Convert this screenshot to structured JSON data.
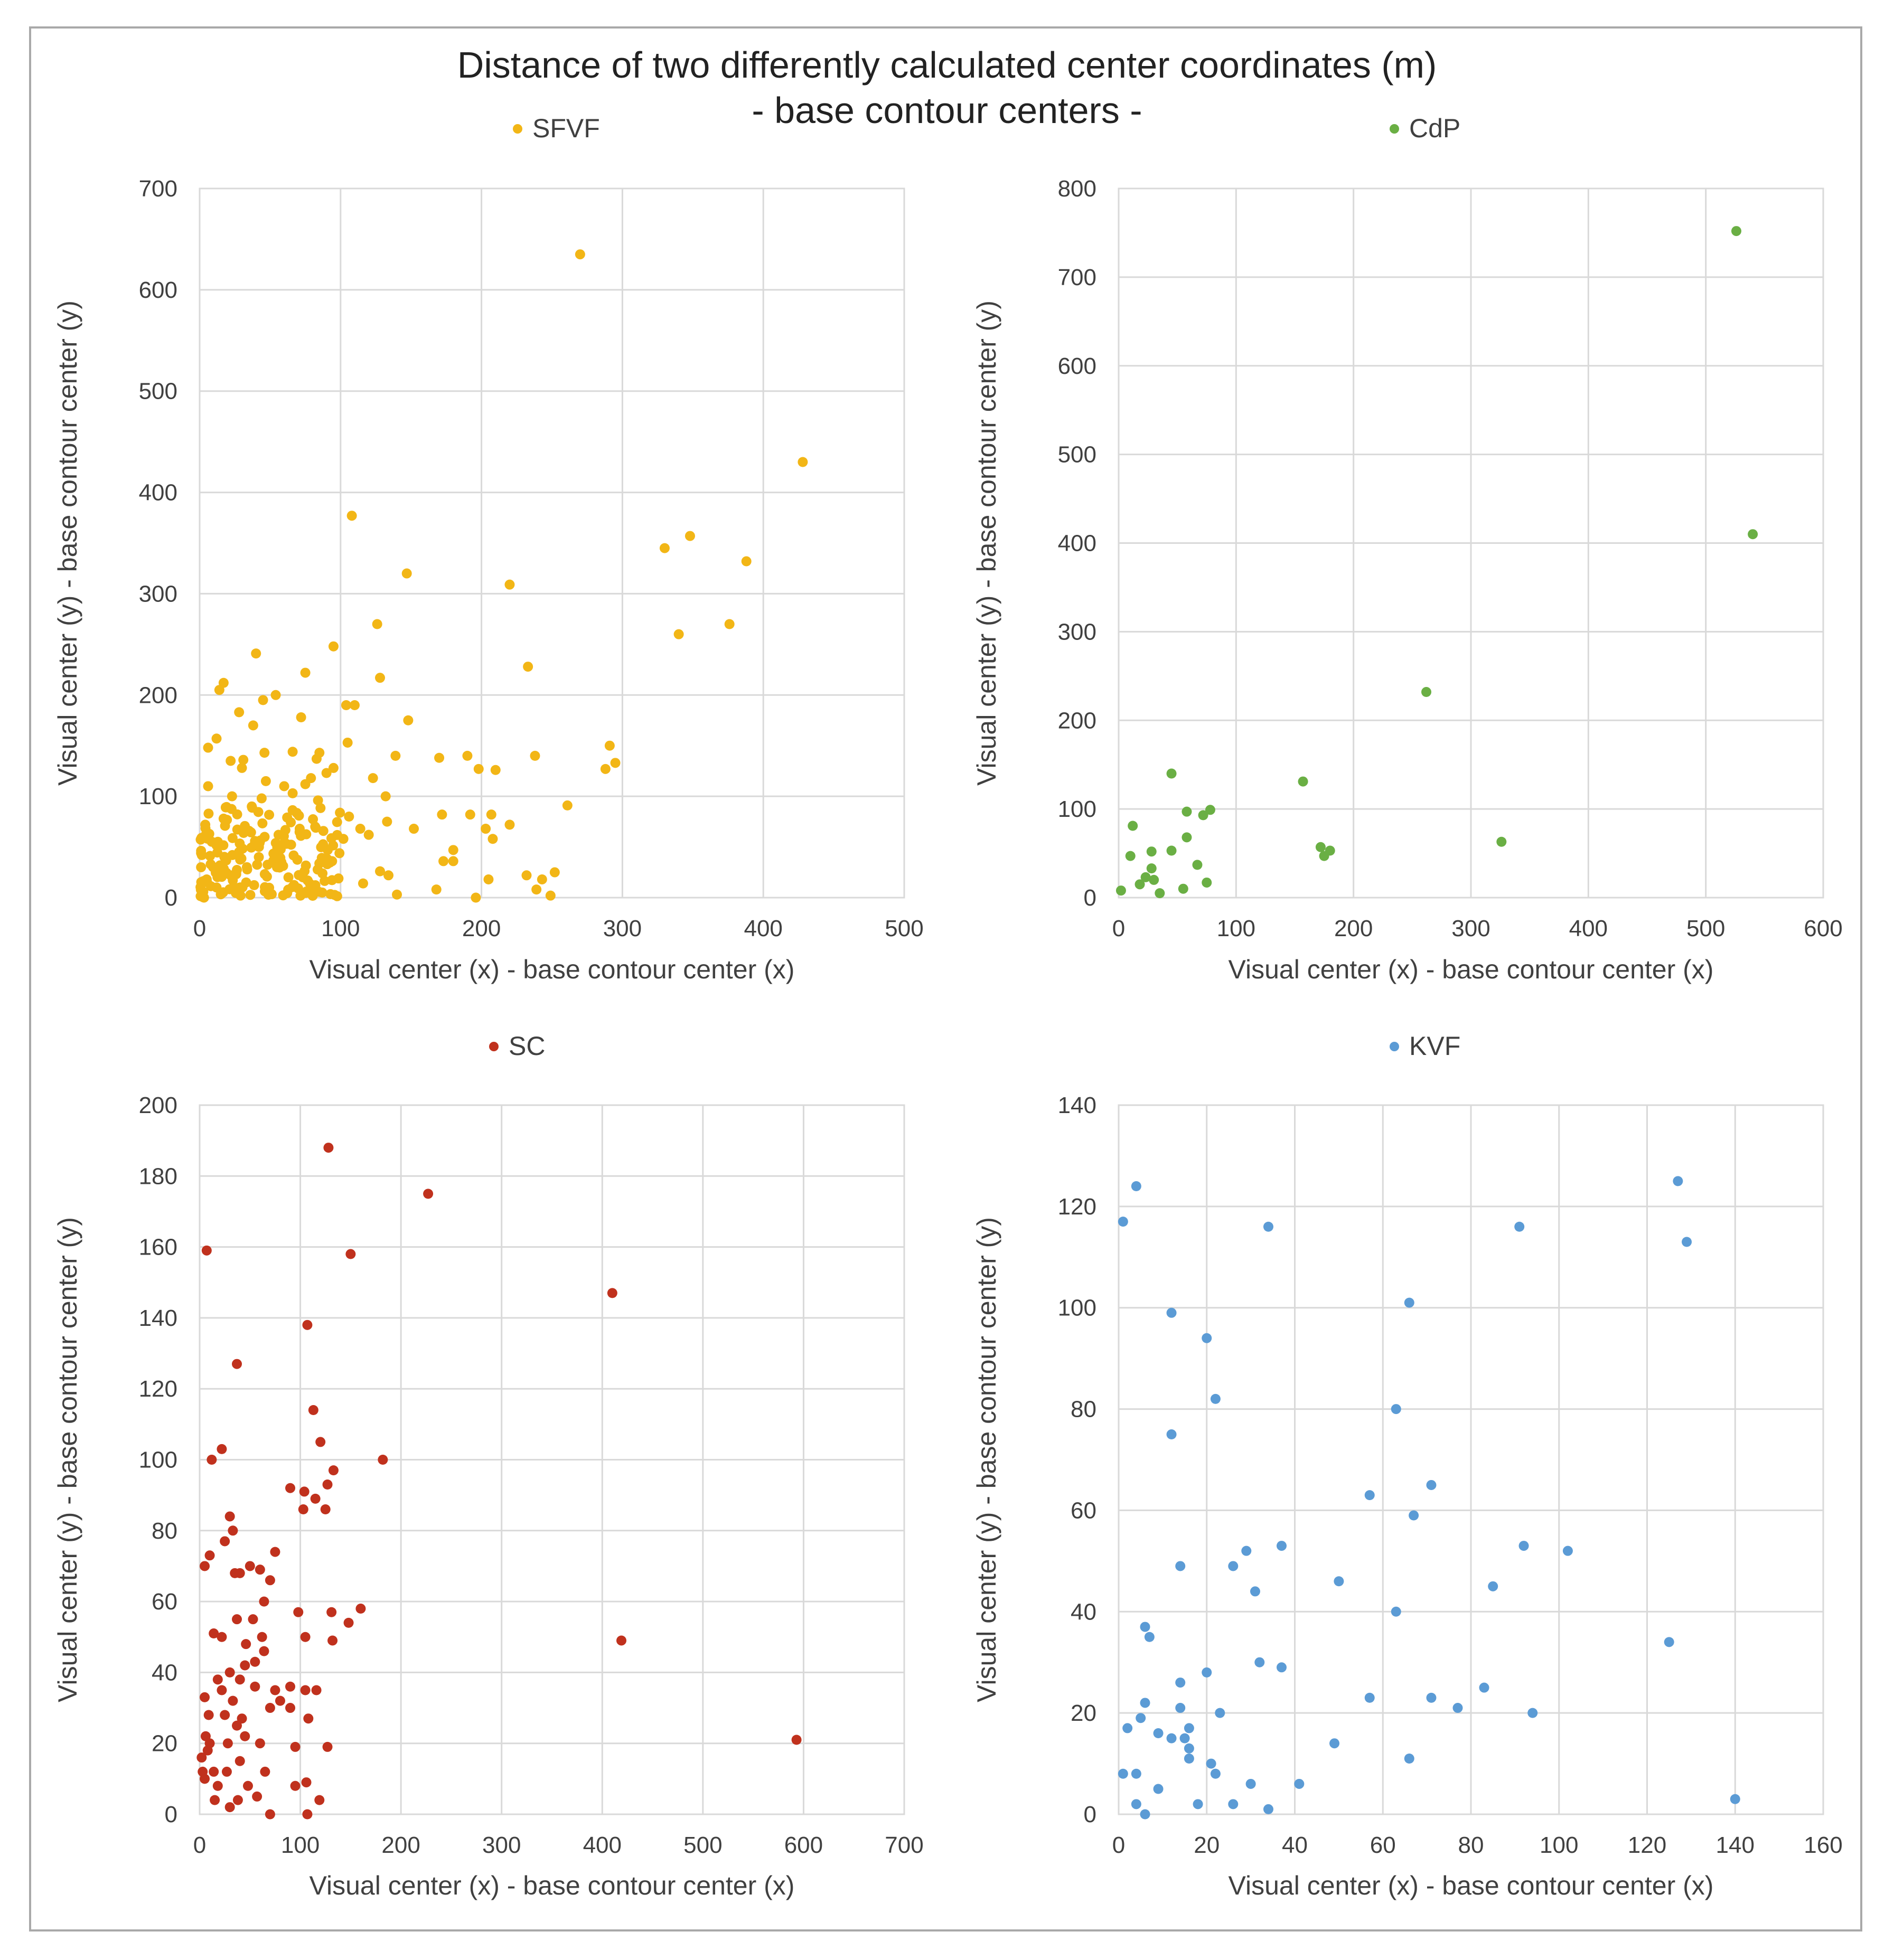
{
  "title": "Distance of two differently calculated center coordinates (m)",
  "subtitle": "- base contour centers -",
  "colors": {
    "grid": "#d9d9d9",
    "text": "#404040",
    "title": "#222222",
    "frame": "#a9a9a9"
  },
  "chart_data": [
    {
      "type": "scatter",
      "name": "SFVF",
      "color": "#f2b616",
      "xlabel": "Visual center (x) - base contour center (x)",
      "ylabel": "Visual center (y) - base contour center (y)",
      "xlim": [
        0,
        500
      ],
      "ylim": [
        0,
        700
      ],
      "xticks": [
        0,
        100,
        200,
        300,
        400,
        500
      ],
      "yticks": [
        0,
        100,
        200,
        300,
        400,
        500,
        600,
        700
      ],
      "legend": "top-center",
      "points": [
        [
          270,
          635
        ],
        [
          428,
          430
        ],
        [
          108,
          377
        ],
        [
          348,
          357
        ],
        [
          330,
          345
        ],
        [
          388,
          332
        ],
        [
          147,
          320
        ],
        [
          220,
          309
        ],
        [
          376,
          270
        ],
        [
          126,
          270
        ],
        [
          340,
          260
        ],
        [
          233,
          228
        ],
        [
          95,
          248
        ],
        [
          40,
          241
        ],
        [
          75,
          222
        ],
        [
          128,
          217
        ],
        [
          17,
          212
        ],
        [
          14,
          205
        ],
        [
          54,
          200
        ],
        [
          45,
          195
        ],
        [
          38,
          170
        ],
        [
          110,
          190
        ],
        [
          104,
          190
        ],
        [
          72,
          178
        ],
        [
          148,
          175
        ],
        [
          28,
          183
        ],
        [
          6,
          148
        ],
        [
          12,
          157
        ],
        [
          22,
          135
        ],
        [
          31,
          136
        ],
        [
          105,
          153
        ],
        [
          85,
          143
        ],
        [
          46,
          143
        ],
        [
          66,
          144
        ],
        [
          83,
          137
        ],
        [
          139,
          140
        ],
        [
          170,
          138
        ],
        [
          190,
          140
        ],
        [
          198,
          127
        ],
        [
          210,
          126
        ],
        [
          238,
          140
        ],
        [
          123,
          118
        ],
        [
          291,
          150
        ],
        [
          295,
          133
        ],
        [
          288,
          127
        ],
        [
          30,
          128
        ],
        [
          6,
          110
        ],
        [
          60,
          110
        ],
        [
          90,
          123
        ],
        [
          95,
          128
        ],
        [
          47,
          115
        ],
        [
          75,
          112
        ],
        [
          79,
          118
        ],
        [
          23,
          100
        ],
        [
          37,
          90
        ],
        [
          44,
          98
        ],
        [
          66,
          103
        ],
        [
          84,
          96
        ],
        [
          132,
          100
        ],
        [
          261,
          91
        ],
        [
          172,
          82
        ],
        [
          192,
          82
        ],
        [
          207,
          82
        ],
        [
          203,
          68
        ],
        [
          208,
          58
        ],
        [
          180,
          47
        ],
        [
          220,
          72
        ],
        [
          133,
          75
        ],
        [
          106,
          80
        ],
        [
          114,
          68
        ],
        [
          120,
          62
        ],
        [
          102,
          58
        ],
        [
          82,
          70
        ],
        [
          35,
          66
        ],
        [
          17,
          78
        ],
        [
          4,
          72
        ],
        [
          56,
          62
        ],
        [
          71,
          68
        ],
        [
          152,
          68
        ],
        [
          180,
          36
        ],
        [
          173,
          36
        ],
        [
          232,
          22
        ],
        [
          243,
          18
        ],
        [
          252,
          25
        ],
        [
          239,
          8
        ],
        [
          249,
          2
        ],
        [
          205,
          18
        ],
        [
          196,
          0
        ],
        [
          168,
          8
        ],
        [
          140,
          3
        ],
        [
          128,
          26
        ],
        [
          134,
          22
        ],
        [
          116,
          14
        ],
        [
          94,
          36
        ],
        [
          58,
          35
        ],
        [
          42,
          40
        ],
        [
          1,
          44
        ],
        [
          1,
          30
        ],
        [
          5,
          18
        ],
        [
          12,
          10
        ],
        [
          22,
          22
        ],
        [
          29,
          2
        ],
        [
          33,
          15
        ],
        [
          63,
          20
        ],
        [
          87,
          5
        ]
      ],
      "cluster": {
        "n": 160,
        "xmax": 100,
        "ymax": 90,
        "seed": 11
      }
    },
    {
      "type": "scatter",
      "name": "CdP",
      "color": "#6aaf44",
      "xlabel": "Visual center (x) - base contour center (x)",
      "ylabel": "Visual center (y) - base contour center (y)",
      "xlim": [
        0,
        600
      ],
      "ylim": [
        0,
        800
      ],
      "xticks": [
        0,
        100,
        200,
        300,
        400,
        500,
        600
      ],
      "yticks": [
        0,
        100,
        200,
        300,
        400,
        500,
        600,
        700,
        800
      ],
      "legend": "top-center",
      "points": [
        [
          526,
          752
        ],
        [
          540,
          410
        ],
        [
          262,
          232
        ],
        [
          157,
          131
        ],
        [
          326,
          63
        ],
        [
          172,
          57
        ],
        [
          175,
          47
        ],
        [
          180,
          53
        ],
        [
          45,
          140
        ],
        [
          78,
          99
        ],
        [
          72,
          93
        ],
        [
          58,
          97
        ],
        [
          12,
          81
        ],
        [
          58,
          68
        ],
        [
          45,
          53
        ],
        [
          28,
          52
        ],
        [
          10,
          47
        ],
        [
          28,
          33
        ],
        [
          67,
          37
        ],
        [
          23,
          23
        ],
        [
          30,
          20
        ],
        [
          18,
          15
        ],
        [
          75,
          17
        ],
        [
          55,
          10
        ],
        [
          35,
          5
        ],
        [
          2,
          8
        ]
      ]
    },
    {
      "type": "scatter",
      "name": "SC",
      "color": "#c0311d",
      "xlabel": "Visual center (x) - base contour center (x)",
      "ylabel": "Visual center (y) - base contour center (y)",
      "xlim": [
        0,
        700
      ],
      "ylim": [
        0,
        200
      ],
      "xticks": [
        0,
        100,
        200,
        300,
        400,
        500,
        600,
        700
      ],
      "yticks": [
        0,
        20,
        40,
        60,
        80,
        100,
        120,
        140,
        160,
        180,
        200
      ],
      "legend": "top-center",
      "points": [
        [
          128,
          188
        ],
        [
          227,
          175
        ],
        [
          7,
          159
        ],
        [
          150,
          158
        ],
        [
          410,
          147
        ],
        [
          107,
          138
        ],
        [
          37,
          127
        ],
        [
          113,
          114
        ],
        [
          120,
          105
        ],
        [
          22,
          103
        ],
        [
          182,
          100
        ],
        [
          12,
          100
        ],
        [
          133,
          97
        ],
        [
          90,
          92
        ],
        [
          104,
          91
        ],
        [
          127,
          93
        ],
        [
          115,
          89
        ],
        [
          103,
          86
        ],
        [
          125,
          86
        ],
        [
          30,
          84
        ],
        [
          33,
          80
        ],
        [
          25,
          77
        ],
        [
          75,
          74
        ],
        [
          5,
          70
        ],
        [
          10,
          73
        ],
        [
          50,
          70
        ],
        [
          60,
          69
        ],
        [
          35,
          68
        ],
        [
          40,
          68
        ],
        [
          70,
          66
        ],
        [
          64,
          60
        ],
        [
          160,
          58
        ],
        [
          148,
          54
        ],
        [
          131,
          57
        ],
        [
          132,
          49
        ],
        [
          98,
          57
        ],
        [
          105,
          50
        ],
        [
          419,
          49
        ],
        [
          593,
          21
        ],
        [
          14,
          51
        ],
        [
          22,
          50
        ],
        [
          37,
          55
        ],
        [
          53,
          55
        ],
        [
          46,
          48
        ],
        [
          62,
          50
        ],
        [
          64,
          46
        ],
        [
          55,
          43
        ],
        [
          45,
          42
        ],
        [
          30,
          40
        ],
        [
          40,
          38
        ],
        [
          18,
          38
        ],
        [
          22,
          35
        ],
        [
          33,
          32
        ],
        [
          5,
          33
        ],
        [
          75,
          35
        ],
        [
          55,
          36
        ],
        [
          90,
          36
        ],
        [
          105,
          35
        ],
        [
          116,
          35
        ],
        [
          70,
          30
        ],
        [
          80,
          32
        ],
        [
          90,
          30
        ],
        [
          9,
          28
        ],
        [
          25,
          28
        ],
        [
          37,
          25
        ],
        [
          42,
          27
        ],
        [
          6,
          22
        ],
        [
          10,
          20
        ],
        [
          28,
          20
        ],
        [
          45,
          22
        ],
        [
          60,
          20
        ],
        [
          95,
          19
        ],
        [
          108,
          27
        ],
        [
          127,
          19
        ],
        [
          3,
          12
        ],
        [
          14,
          12
        ],
        [
          27,
          12
        ],
        [
          40,
          15
        ],
        [
          48,
          8
        ],
        [
          57,
          5
        ],
        [
          65,
          12
        ],
        [
          95,
          8
        ],
        [
          106,
          9
        ],
        [
          119,
          4
        ],
        [
          70,
          0
        ],
        [
          107,
          0
        ],
        [
          38,
          4
        ],
        [
          30,
          2
        ],
        [
          15,
          4
        ],
        [
          5,
          10
        ],
        [
          18,
          8
        ],
        [
          2,
          16
        ],
        [
          8,
          18
        ]
      ]
    },
    {
      "type": "scatter",
      "name": "KVF",
      "color": "#5b9bd5",
      "xlabel": "Visual center (x) - base contour center (x)",
      "ylabel": "Visual center (y) - base contour center (y)",
      "xlim": [
        0,
        160
      ],
      "ylim": [
        0,
        140
      ],
      "xticks": [
        0,
        20,
        40,
        60,
        80,
        100,
        120,
        140,
        160
      ],
      "yticks": [
        0,
        20,
        40,
        60,
        80,
        100,
        120,
        140
      ],
      "legend": "top-center",
      "points": [
        [
          127,
          125
        ],
        [
          4,
          124
        ],
        [
          1,
          117
        ],
        [
          34,
          116
        ],
        [
          91,
          116
        ],
        [
          129,
          113
        ],
        [
          66,
          101
        ],
        [
          12,
          99
        ],
        [
          20,
          94
        ],
        [
          22,
          82
        ],
        [
          63,
          80
        ],
        [
          12,
          75
        ],
        [
          71,
          65
        ],
        [
          57,
          63
        ],
        [
          67,
          59
        ],
        [
          102,
          52
        ],
        [
          92,
          53
        ],
        [
          37,
          53
        ],
        [
          29,
          52
        ],
        [
          14,
          49
        ],
        [
          26,
          49
        ],
        [
          50,
          46
        ],
        [
          85,
          45
        ],
        [
          31,
          44
        ],
        [
          63,
          40
        ],
        [
          6,
          37
        ],
        [
          7,
          35
        ],
        [
          125,
          34
        ],
        [
          32,
          30
        ],
        [
          37,
          29
        ],
        [
          20,
          28
        ],
        [
          14,
          26
        ],
        [
          83,
          25
        ],
        [
          57,
          23
        ],
        [
          71,
          23
        ],
        [
          77,
          21
        ],
        [
          94,
          20
        ],
        [
          23,
          20
        ],
        [
          14,
          21
        ],
        [
          6,
          22
        ],
        [
          2,
          17
        ],
        [
          5,
          19
        ],
        [
          9,
          16
        ],
        [
          12,
          15
        ],
        [
          15,
          15
        ],
        [
          16,
          13
        ],
        [
          16,
          17
        ],
        [
          16,
          11
        ],
        [
          49,
          14
        ],
        [
          66,
          11
        ],
        [
          21,
          10
        ],
        [
          22,
          8
        ],
        [
          30,
          6
        ],
        [
          41,
          6
        ],
        [
          1,
          8
        ],
        [
          4,
          8
        ],
        [
          9,
          5
        ],
        [
          4,
          2
        ],
        [
          6,
          0
        ],
        [
          18,
          2
        ],
        [
          26,
          2
        ],
        [
          34,
          1
        ],
        [
          140,
          3
        ]
      ]
    }
  ]
}
